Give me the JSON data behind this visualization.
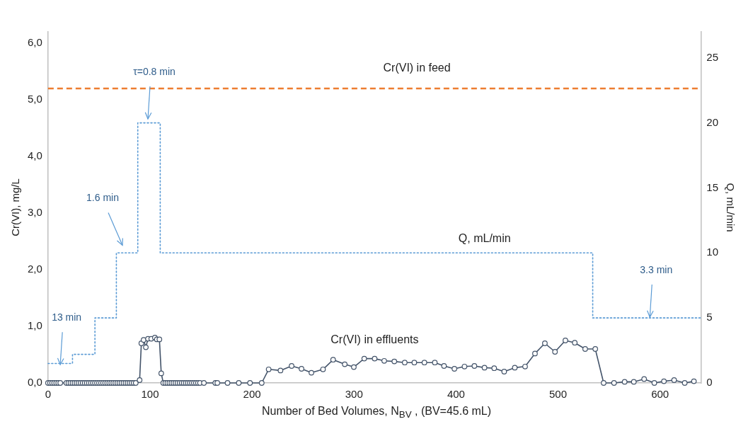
{
  "chart_data": {
    "type": "line",
    "xlabel": "Number of Bed Volumes, N$_{BV}$ , (BV=45.6 mL)",
    "ylabel": "Cr(VI), mg/L",
    "y2label": "Q, mL/min",
    "xlim": [
      0,
      640
    ],
    "xticks": [
      0,
      100,
      200,
      300,
      400,
      500,
      600
    ],
    "ylim": [
      0,
      6.2
    ],
    "yticks": [
      {
        "value": 0,
        "label": "0,0"
      },
      {
        "value": 1,
        "label": "1,0"
      },
      {
        "value": 2,
        "label": "2,0"
      },
      {
        "value": 3,
        "label": "3,0"
      },
      {
        "value": 4,
        "label": "4,0"
      },
      {
        "value": 5,
        "label": "5,0"
      },
      {
        "value": 6,
        "label": "6,0"
      }
    ],
    "y2lim": [
      0,
      27
    ],
    "y2ticks": [
      0,
      5,
      10,
      15,
      20,
      25
    ],
    "grid": false,
    "legend": false,
    "series": [
      {
        "name": "Cr(VI) in effluents",
        "color": "#44546a",
        "marker": "circle",
        "line_style": "solid",
        "x": [
          0,
          2,
          4,
          6,
          8,
          10,
          12,
          18,
          20,
          22,
          24,
          26,
          28,
          30,
          32,
          34,
          36,
          38,
          40,
          42,
          44,
          46,
          48,
          50,
          52,
          54,
          56,
          58,
          60,
          62,
          64,
          66,
          68,
          70,
          72,
          74,
          76,
          78,
          80,
          82,
          84,
          86,
          89.8,
          91.5,
          93.7,
          95.9,
          98,
          101.2,
          104.8,
          106.7,
          109.2,
          111,
          113,
          115,
          117,
          119,
          121,
          123,
          125,
          127,
          129,
          131,
          133,
          135,
          137,
          139,
          141,
          143,
          145,
          147,
          149,
          152.8,
          164,
          166,
          176,
          187,
          198,
          209.5,
          216.3,
          227.9,
          238.8,
          248.5,
          258.2,
          269.6,
          279.5,
          290.9,
          299.8,
          310,
          320.2,
          329.6,
          339.5,
          349.7,
          359.1,
          369,
          379.2,
          388.2,
          398.4,
          408.3,
          418,
          427.9,
          437.4,
          447.2,
          457.6,
          467.7,
          477.4,
          487.1,
          497,
          507.2,
          516.4,
          526.6,
          536.5,
          544.7,
          554.9,
          565.3,
          574.3,
          584.4,
          594.4,
          603.8,
          613.8,
          624.2,
          633.2
        ],
        "values": [
          0,
          0,
          0,
          0,
          0,
          0,
          0,
          0,
          0,
          0,
          0,
          0,
          0,
          0,
          0,
          0,
          0,
          0,
          0,
          0,
          0,
          0,
          0,
          0,
          0,
          0,
          0,
          0,
          0,
          0,
          0,
          0,
          0,
          0,
          0,
          0,
          0,
          0,
          0,
          0,
          0,
          0,
          0.05,
          0.7,
          0.76,
          0.63,
          0.78,
          0.78,
          0.8,
          0.77,
          0.77,
          0.17,
          0,
          0,
          0,
          0,
          0,
          0,
          0,
          0,
          0,
          0,
          0,
          0,
          0,
          0,
          0,
          0,
          0,
          0,
          0,
          0,
          0,
          0,
          0,
          0,
          0,
          0,
          0.24,
          0.22,
          0.3,
          0.25,
          0.18,
          0.24,
          0.41,
          0.33,
          0.28,
          0.43,
          0.43,
          0.39,
          0.38,
          0.36,
          0.36,
          0.36,
          0.36,
          0.3,
          0.25,
          0.29,
          0.3,
          0.27,
          0.26,
          0.2,
          0.27,
          0.29,
          0.52,
          0.7,
          0.55,
          0.75,
          0.71,
          0.6,
          0.6,
          0,
          0,
          0.02,
          0.02,
          0.07,
          0,
          0.03,
          0.05,
          0,
          0.03
        ]
      },
      {
        "name": "Q, mL/min",
        "axis": "y2",
        "color": "#5b9bd5",
        "marker": "none",
        "line_style": "dotted",
        "x": [
          0,
          24,
          24,
          46,
          46,
          67,
          67,
          88,
          88,
          110,
          110,
          534,
          534,
          640
        ],
        "values": [
          1.5,
          1.5,
          2.2,
          2.2,
          5,
          5,
          10,
          10,
          20,
          20,
          10,
          10,
          5,
          5
        ]
      }
    ],
    "ref_lines": [
      {
        "axis": "y",
        "value": 5.2,
        "label": "Cr(VI) in feed",
        "color": "#ed7d31",
        "line_style": "dashed"
      }
    ],
    "annotations": [
      "τ=0.8 min",
      "1.6 min",
      {
        "text": "13 min",
        "x": 12,
        "y": 0.31
      },
      {
        "text": "3.3 min",
        "x": 590,
        "y": 1.15
      }
    ]
  }
}
